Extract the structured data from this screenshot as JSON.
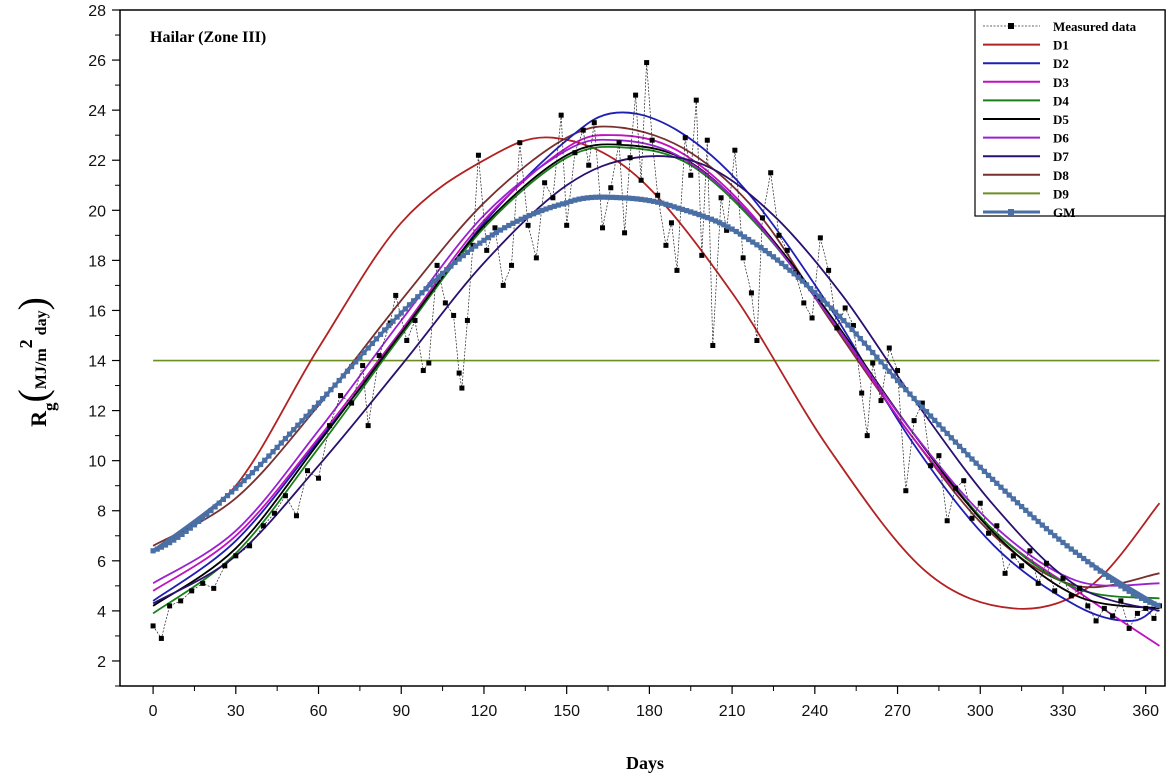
{
  "chart_data": {
    "type": "line",
    "annotation": "Hailar (Zone III)",
    "xlabel": "Days",
    "ylabel": {
      "main": "R",
      "sub": "g",
      "unit_open": "(",
      "unit_a": "MJ/m",
      "unit_sup": "2",
      "unit_b": " day",
      "unit_close": ")"
    },
    "xlim": [
      -12,
      367
    ],
    "ylim": [
      1,
      28
    ],
    "xticks": [
      0,
      30,
      60,
      90,
      120,
      150,
      180,
      210,
      240,
      270,
      300,
      330,
      360
    ],
    "yticks": [
      2,
      4,
      6,
      8,
      10,
      12,
      14,
      16,
      18,
      20,
      22,
      24,
      26,
      28
    ],
    "grid": false,
    "legend_position": "top-right",
    "series": [
      {
        "name": "Measured data",
        "color": "#000000",
        "marker": "square",
        "points": [
          [
            0,
            3.4
          ],
          [
            3,
            2.9
          ],
          [
            6,
            4.2
          ],
          [
            10,
            4.4
          ],
          [
            14,
            4.8
          ],
          [
            18,
            5.1
          ],
          [
            22,
            4.9
          ],
          [
            26,
            5.8
          ],
          [
            30,
            6.2
          ],
          [
            35,
            6.6
          ],
          [
            40,
            7.4
          ],
          [
            44,
            7.9
          ],
          [
            48,
            8.6
          ],
          [
            52,
            7.8
          ],
          [
            56,
            9.6
          ],
          [
            60,
            9.3
          ],
          [
            64,
            11.4
          ],
          [
            68,
            12.6
          ],
          [
            72,
            12.3
          ],
          [
            76,
            13.8
          ],
          [
            78,
            11.4
          ],
          [
            82,
            14.2
          ],
          [
            86,
            15.5
          ],
          [
            88,
            16.6
          ],
          [
            92,
            14.8
          ],
          [
            95,
            15.6
          ],
          [
            98,
            13.6
          ],
          [
            100,
            13.9
          ],
          [
            103,
            17.8
          ],
          [
            106,
            16.3
          ],
          [
            109,
            15.8
          ],
          [
            111,
            13.5
          ],
          [
            112,
            12.9
          ],
          [
            114,
            15.6
          ],
          [
            116,
            18.6
          ],
          [
            118,
            22.2
          ],
          [
            121,
            18.4
          ],
          [
            124,
            19.3
          ],
          [
            127,
            17.0
          ],
          [
            130,
            17.8
          ],
          [
            133,
            22.7
          ],
          [
            136,
            19.4
          ],
          [
            139,
            18.1
          ],
          [
            142,
            21.1
          ],
          [
            145,
            20.5
          ],
          [
            148,
            23.8
          ],
          [
            150,
            19.4
          ],
          [
            153,
            22.3
          ],
          [
            156,
            23.2
          ],
          [
            158,
            21.8
          ],
          [
            160,
            23.5
          ],
          [
            163,
            19.3
          ],
          [
            166,
            20.9
          ],
          [
            169,
            22.7
          ],
          [
            171,
            19.1
          ],
          [
            173,
            22.1
          ],
          [
            175,
            24.6
          ],
          [
            177,
            21.2
          ],
          [
            179,
            25.9
          ],
          [
            181,
            22.8
          ],
          [
            183,
            20.6
          ],
          [
            186,
            18.6
          ],
          [
            188,
            19.5
          ],
          [
            190,
            17.6
          ],
          [
            193,
            22.9
          ],
          [
            195,
            21.4
          ],
          [
            197,
            24.4
          ],
          [
            199,
            18.2
          ],
          [
            201,
            22.8
          ],
          [
            203,
            14.6
          ],
          [
            206,
            20.5
          ],
          [
            208,
            19.2
          ],
          [
            211,
            22.4
          ],
          [
            214,
            18.1
          ],
          [
            217,
            16.7
          ],
          [
            219,
            14.8
          ],
          [
            221,
            19.7
          ],
          [
            224,
            21.5
          ],
          [
            227,
            19.0
          ],
          [
            230,
            18.4
          ],
          [
            233,
            17.5
          ],
          [
            236,
            16.3
          ],
          [
            239,
            15.7
          ],
          [
            242,
            18.9
          ],
          [
            245,
            17.6
          ],
          [
            248,
            15.3
          ],
          [
            251,
            16.1
          ],
          [
            254,
            15.4
          ],
          [
            257,
            12.7
          ],
          [
            259,
            11.0
          ],
          [
            261,
            13.9
          ],
          [
            264,
            12.4
          ],
          [
            267,
            14.5
          ],
          [
            270,
            13.6
          ],
          [
            273,
            8.8
          ],
          [
            276,
            11.6
          ],
          [
            279,
            12.3
          ],
          [
            282,
            9.8
          ],
          [
            285,
            10.2
          ],
          [
            288,
            7.6
          ],
          [
            291,
            8.9
          ],
          [
            294,
            9.2
          ],
          [
            297,
            7.7
          ],
          [
            300,
            8.3
          ],
          [
            303,
            7.1
          ],
          [
            306,
            7.4
          ],
          [
            309,
            5.5
          ],
          [
            312,
            6.2
          ],
          [
            315,
            5.8
          ],
          [
            318,
            6.4
          ],
          [
            321,
            5.1
          ],
          [
            324,
            5.9
          ],
          [
            327,
            4.8
          ],
          [
            330,
            5.3
          ],
          [
            333,
            4.6
          ],
          [
            336,
            4.9
          ],
          [
            339,
            4.2
          ],
          [
            342,
            3.6
          ],
          [
            345,
            4.1
          ],
          [
            348,
            3.8
          ],
          [
            351,
            4.4
          ],
          [
            354,
            3.3
          ],
          [
            357,
            3.9
          ],
          [
            360,
            4.1
          ],
          [
            363,
            3.7
          ],
          [
            365,
            4.2
          ]
        ]
      },
      {
        "name": "D1",
        "color": "#b22222",
        "curve": {
          "points": [
            [
              0,
              6.4
            ],
            [
              30,
              9.0
            ],
            [
              60,
              14.5
            ],
            [
              90,
              19.5
            ],
            [
              120,
              22.0
            ],
            [
              145,
              22.9
            ],
            [
              175,
              21.4
            ],
            [
              210,
              16.7
            ],
            [
              245,
              10.5
            ],
            [
              280,
              5.6
            ],
            [
              312,
              4.1
            ],
            [
              340,
              5.0
            ],
            [
              365,
              8.3
            ]
          ]
        }
      },
      {
        "name": "D2",
        "color": "#1f1fb4",
        "curve": {
          "points": [
            [
              0,
              4.4
            ],
            [
              30,
              6.8
            ],
            [
              60,
              10.8
            ],
            [
              90,
              15.0
            ],
            [
              120,
              19.5
            ],
            [
              150,
              22.8
            ],
            [
              168,
              23.9
            ],
            [
              190,
              23.2
            ],
            [
              215,
              20.8
            ],
            [
              245,
              16.2
            ],
            [
              275,
              10.8
            ],
            [
              305,
              6.6
            ],
            [
              335,
              4.2
            ],
            [
              355,
              3.6
            ],
            [
              365,
              4.3
            ]
          ]
        }
      },
      {
        "name": "D3",
        "color": "#c010c0",
        "curve": {
          "points": [
            [
              0,
              4.8
            ],
            [
              30,
              7.0
            ],
            [
              60,
              10.9
            ],
            [
              90,
              15.2
            ],
            [
              120,
              19.6
            ],
            [
              150,
              22.5
            ],
            [
              168,
              23.0
            ],
            [
              190,
              22.4
            ],
            [
              215,
              20.1
            ],
            [
              245,
              15.8
            ],
            [
              275,
              11.0
            ],
            [
              305,
              7.2
            ],
            [
              335,
              4.8
            ],
            [
              365,
              2.6
            ]
          ]
        }
      },
      {
        "name": "D4",
        "color": "#1a7f1a",
        "curve": {
          "points": [
            [
              0,
              3.9
            ],
            [
              30,
              6.3
            ],
            [
              60,
              10.5
            ],
            [
              90,
              15.0
            ],
            [
              120,
              19.3
            ],
            [
              150,
              22.1
            ],
            [
              172,
              22.5
            ],
            [
              195,
              21.8
            ],
            [
              220,
              19.3
            ],
            [
              245,
              15.8
            ],
            [
              275,
              11.2
            ],
            [
              305,
              7.2
            ],
            [
              335,
              4.9
            ],
            [
              365,
              4.5
            ]
          ]
        }
      },
      {
        "name": "D5",
        "color": "#000000",
        "curve": {
          "points": [
            [
              0,
              4.2
            ],
            [
              30,
              6.5
            ],
            [
              60,
              10.7
            ],
            [
              90,
              15.1
            ],
            [
              120,
              19.4
            ],
            [
              150,
              22.2
            ],
            [
              172,
              22.6
            ],
            [
              195,
              21.9
            ],
            [
              220,
              19.4
            ],
            [
              245,
              15.9
            ],
            [
              275,
              11.2
            ],
            [
              305,
              7.1
            ],
            [
              335,
              4.6
            ],
            [
              365,
              4.1
            ]
          ]
        }
      },
      {
        "name": "D6",
        "color": "#9a20d0",
        "curve": {
          "points": [
            [
              0,
              5.1
            ],
            [
              30,
              7.2
            ],
            [
              60,
              11.2
            ],
            [
              90,
              15.6
            ],
            [
              120,
              19.8
            ],
            [
              150,
              22.4
            ],
            [
              168,
              22.8
            ],
            [
              190,
              22.2
            ],
            [
              215,
              20.0
            ],
            [
              245,
              15.8
            ],
            [
              275,
              11.2
            ],
            [
              305,
              7.4
            ],
            [
              335,
              5.2
            ],
            [
              365,
              5.1
            ]
          ]
        }
      },
      {
        "name": "D7",
        "color": "#2a1070",
        "curve": {
          "points": [
            [
              0,
              4.3
            ],
            [
              30,
              6.2
            ],
            [
              60,
              9.8
            ],
            [
              90,
              13.8
            ],
            [
              120,
              17.9
            ],
            [
              150,
              21.0
            ],
            [
              175,
              22.1
            ],
            [
              200,
              21.8
            ],
            [
              225,
              19.8
            ],
            [
              250,
              16.6
            ],
            [
              275,
              12.6
            ],
            [
              305,
              8.2
            ],
            [
              335,
              5.0
            ],
            [
              365,
              4.0
            ]
          ]
        }
      },
      {
        "name": "D8",
        "color": "#7a2f2f",
        "curve": {
          "points": [
            [
              0,
              6.6
            ],
            [
              30,
              8.5
            ],
            [
              60,
              12.2
            ],
            [
              90,
              16.4
            ],
            [
              120,
              20.3
            ],
            [
              150,
              22.9
            ],
            [
              170,
              23.3
            ],
            [
              195,
              22.3
            ],
            [
              220,
              19.8
            ],
            [
              245,
              15.7
            ],
            [
              275,
              11.0
            ],
            [
              305,
              7.0
            ],
            [
              335,
              5.0
            ],
            [
              365,
              5.5
            ]
          ]
        }
      },
      {
        "name": "D9",
        "color": "#6b8e23",
        "constant": 14.0
      },
      {
        "name": "GM",
        "color": "#4a6fa5",
        "marker": "square",
        "thick": true,
        "curve": {
          "points": [
            [
              0,
              6.4
            ],
            [
              30,
              8.9
            ],
            [
              60,
              12.3
            ],
            [
              90,
              15.9
            ],
            [
              120,
              18.8
            ],
            [
              150,
              20.3
            ],
            [
              170,
              20.5
            ],
            [
              190,
              20.1
            ],
            [
              215,
              18.9
            ],
            [
              245,
              16.2
            ],
            [
              275,
              12.6
            ],
            [
              305,
              9.2
            ],
            [
              335,
              6.3
            ],
            [
              365,
              4.2
            ]
          ]
        }
      }
    ]
  }
}
